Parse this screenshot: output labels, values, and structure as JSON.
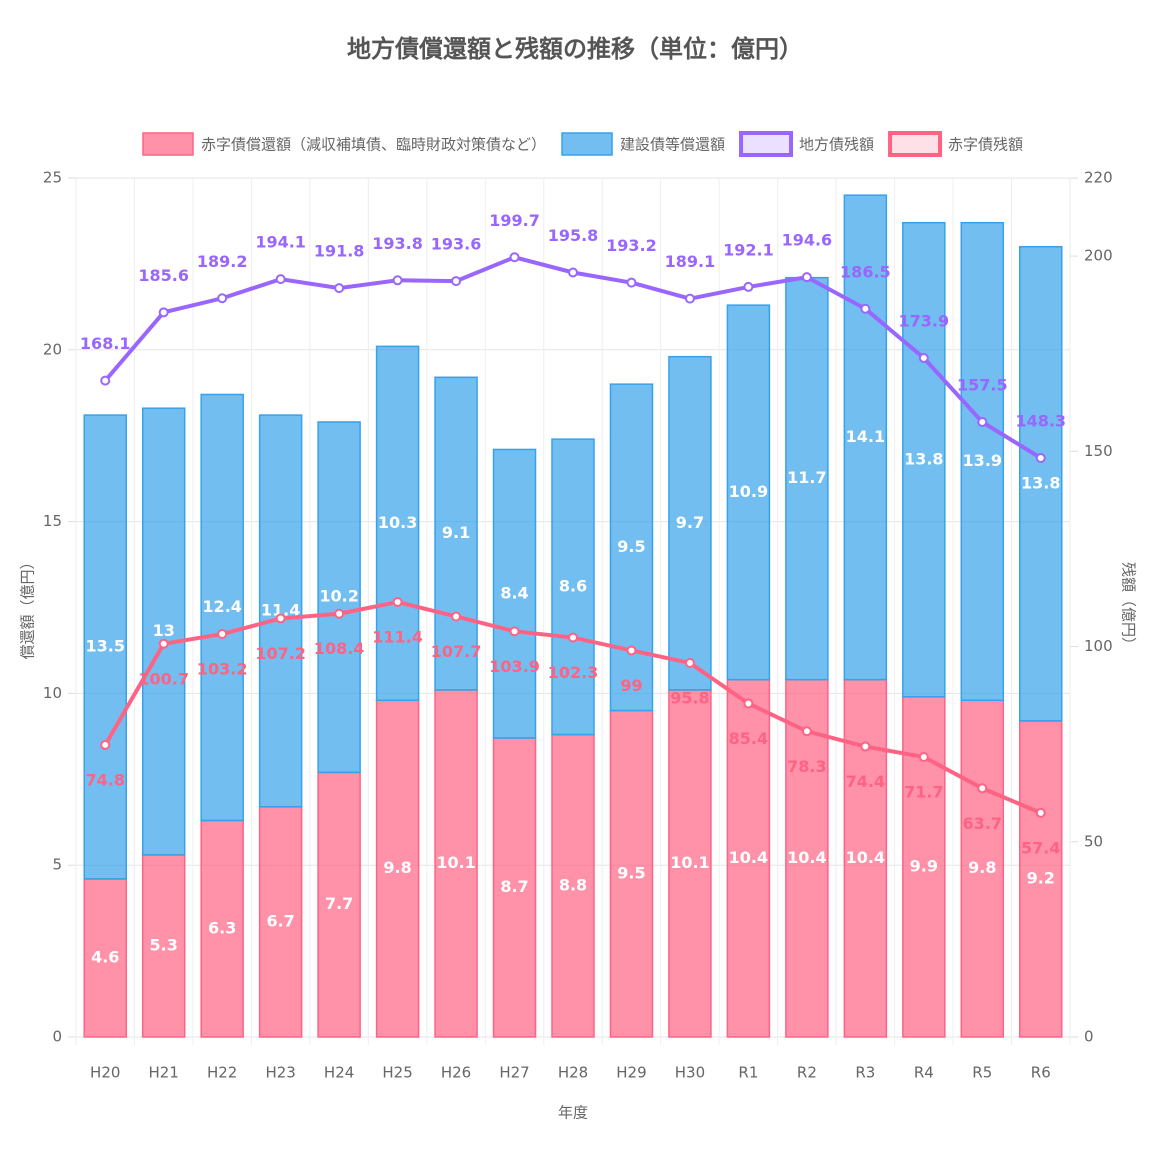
{
  "chart_data": {
    "type": "bar",
    "title": "地方債償還額と残額の推移（単位：億円）",
    "x_label": "年度",
    "y_label": "償還額（億円）",
    "y2_label": "残額（億円）",
    "categories": [
      "H20",
      "H21",
      "H22",
      "H23",
      "H24",
      "H25",
      "H26",
      "H27",
      "H28",
      "H29",
      "H30",
      "R1",
      "R2",
      "R3",
      "R4",
      "R5",
      "R6"
    ],
    "ylim": [
      0,
      25
    ],
    "yticks": [
      0,
      5,
      10,
      15,
      20,
      25
    ],
    "y2lim": [
      0,
      220
    ],
    "y2ticks": [
      0,
      50,
      100,
      150,
      200,
      220
    ],
    "grid": true,
    "legend": "top",
    "series": [
      {
        "name": "赤字債償還額（減収補填債、臨時財政対策債など）",
        "type": "bar",
        "color": "#ff6384",
        "values": [
          4.6,
          5.3,
          6.3,
          6.7,
          7.7,
          9.8,
          10.1,
          8.7,
          8.8,
          9.5,
          10.1,
          10.4,
          10.4,
          10.4,
          9.9,
          9.8,
          9.2
        ]
      },
      {
        "name": "建設債等償還額",
        "type": "bar",
        "color": "#36a2eb",
        "values": [
          13.5,
          13,
          12.4,
          11.4,
          10.2,
          10.3,
          9.1,
          8.4,
          8.6,
          9.5,
          9.7,
          10.9,
          11.7,
          14.1,
          13.8,
          13.9,
          13.8
        ]
      },
      {
        "name": "地方債残額",
        "type": "line",
        "axis": "y2",
        "color": "#9966ff",
        "values": [
          168.1,
          185.6,
          189.2,
          194.1,
          191.8,
          193.8,
          193.6,
          199.7,
          195.8,
          193.2,
          189.1,
          192.1,
          194.6,
          186.5,
          173.9,
          157.5,
          148.3
        ]
      },
      {
        "name": "赤字債残額",
        "type": "line",
        "axis": "y2",
        "color": "#ff6384",
        "values": [
          74.8,
          100.7,
          103.2,
          107.2,
          108.4,
          111.4,
          107.7,
          103.9,
          102.3,
          99,
          95.8,
          85.4,
          78.3,
          74.4,
          71.7,
          63.7,
          57.4
        ]
      }
    ]
  }
}
